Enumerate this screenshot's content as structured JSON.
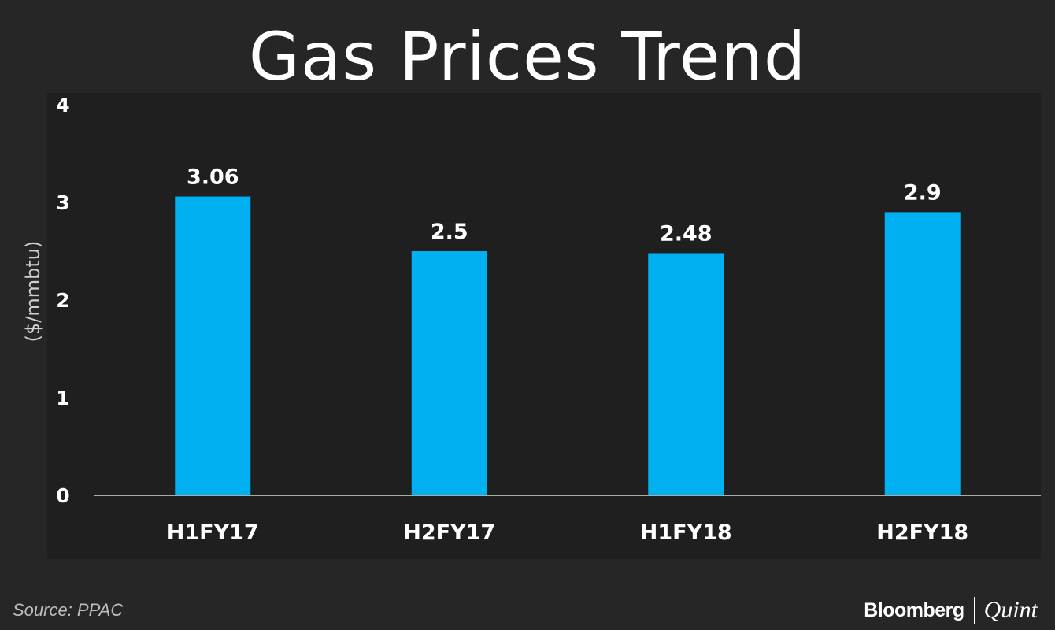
{
  "title": "Gas Prices Trend",
  "source": "Source: PPAC",
  "logo": {
    "primary": "Bloomberg",
    "secondary": "Quint"
  },
  "colors": {
    "background": "#262626",
    "plot_background": "#1f1f1f",
    "bar": "#00b0f0",
    "axis": "#d9d9d9",
    "text": "#ffffff"
  },
  "chart_data": {
    "type": "bar",
    "title": "Gas Prices Trend",
    "ylabel": "($/mmbtu)",
    "xlabel": "",
    "categories": [
      "H1FY17",
      "H2FY17",
      "H1FY18",
      "H2FY18"
    ],
    "values": [
      3.06,
      2.5,
      2.48,
      2.9
    ],
    "data_labels": [
      "3.06",
      "2.5",
      "2.48",
      "2.9"
    ],
    "ylim": [
      0,
      4
    ],
    "yticks": [
      0,
      1,
      2,
      3,
      4
    ],
    "grid": false,
    "legend": "none"
  }
}
